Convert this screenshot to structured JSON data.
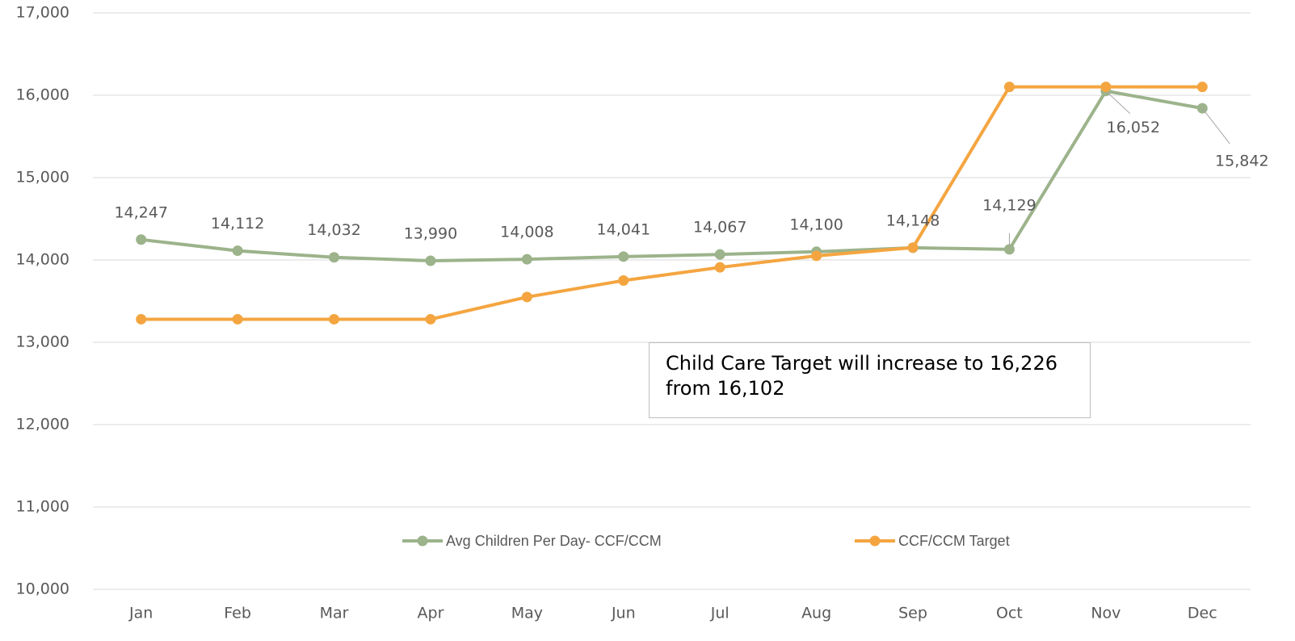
{
  "chart_data": {
    "type": "line",
    "categories": [
      "Jan",
      "Feb",
      "Mar",
      "Apr",
      "May",
      "Jun",
      "Jul",
      "Aug",
      "Sep",
      "Oct",
      "Nov",
      "Dec"
    ],
    "series": [
      {
        "name": "Avg Children Per Day- CCF/CCM",
        "color": "#9cb38b",
        "values": [
          14247,
          14112,
          14032,
          13990,
          14008,
          14041,
          14067,
          14100,
          14148,
          14129,
          16052,
          15842
        ],
        "value_labels": [
          "14,247",
          "14,112",
          "14,032",
          "13,990",
          "14,008",
          "14,041",
          "14,067",
          "14,100",
          "14,148",
          "14,129",
          "16,052",
          "15,842"
        ]
      },
      {
        "name": "CCF/CCM Target",
        "color": "#f4a540",
        "values": [
          13280,
          13280,
          13280,
          13280,
          13550,
          13750,
          13910,
          14050,
          14150,
          16102,
          16102,
          16102
        ]
      }
    ],
    "ylim": [
      10000,
      17000
    ],
    "yticks": [
      {
        "value": 10000,
        "label": "10,000"
      },
      {
        "value": 11000,
        "label": "11,000"
      },
      {
        "value": 12000,
        "label": "12,000"
      },
      {
        "value": 13000,
        "label": "13,000"
      },
      {
        "value": 14000,
        "label": "14,000"
      },
      {
        "value": 15000,
        "label": "15,000"
      },
      {
        "value": 16000,
        "label": "16,000"
      },
      {
        "value": 17000,
        "label": "17,000"
      }
    ],
    "grid": true,
    "annotation": "Child Care Target will increase to 16,226 from 16,102"
  }
}
